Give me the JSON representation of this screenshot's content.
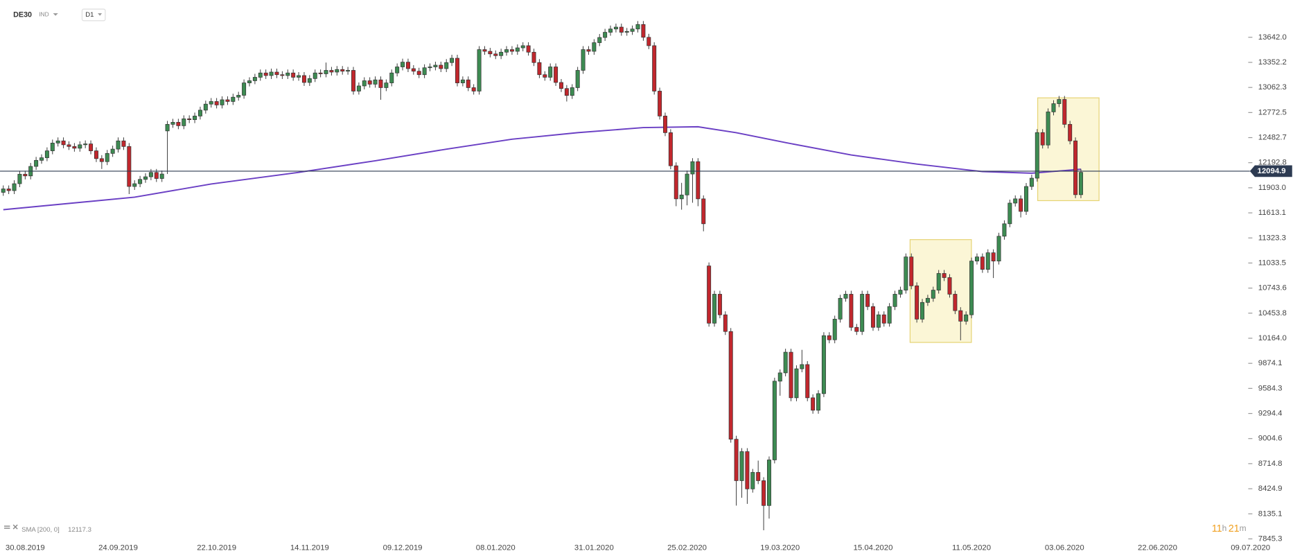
{
  "header": {
    "symbol": "DE30",
    "kind": "IND",
    "timeframe": "D1"
  },
  "chart_data": {
    "type": "candlestick",
    "up_color": "#3d8b52",
    "down_color": "#c1272d",
    "open": [
      11850,
      11890,
      11870,
      11950,
      12060,
      12040,
      12150,
      12220,
      12250,
      12330,
      12420,
      12445,
      12400,
      12380,
      12360,
      12400,
      12410,
      12330,
      12240,
      12205,
      12300,
      12350,
      12445,
      12380,
      11918,
      11950,
      12000,
      12030,
      12080,
      12010,
      12560,
      12636,
      12660,
      12620,
      12700,
      12690,
      12732,
      12800,
      12870,
      12900,
      12860,
      12920,
      12900,
      12950,
      12972,
      13115,
      13140,
      13180,
      13230,
      13200,
      13240,
      13210,
      13200,
      13230,
      13180,
      13200,
      13120,
      13165,
      13230,
      13220,
      13260,
      13240,
      13270,
      13250,
      13260,
      13020,
      13080,
      13140,
      13100,
      13150,
      13060,
      13115,
      13230,
      13300,
      13355,
      13280,
      13250,
      13210,
      13290,
      13300,
      13320,
      13280,
      13350,
      13400,
      13115,
      13150,
      13060,
      13020,
      13500,
      13480,
      13450,
      13430,
      13470,
      13500,
      13480,
      13520,
      13545,
      13470,
      13350,
      13210,
      13180,
      13300,
      13120,
      13050,
      12970,
      13060,
      13260,
      13500,
      13480,
      13580,
      13640,
      13700,
      13738,
      13760,
      13700,
      13710,
      13738,
      13790,
      13642,
      13545,
      13020,
      12732,
      12540,
      12157,
      11775,
      11820,
      12062,
      12205,
      11775,
      11000,
      10338,
      10673,
      10435,
      10242,
      8997,
      8518,
      8854,
      8423,
      8614,
      8518,
      8231,
      8758,
      9668,
      9764,
      10003,
      9476,
      9811,
      9860,
      9476,
      9332,
      9524,
      10194,
      10146,
      10385,
      10626,
      10673,
      10290,
      10242,
      10673,
      10530,
      10290,
      10435,
      10338,
      10530,
      10673,
      10720,
      11104,
      10770,
      10385,
      10578,
      10626,
      10720,
      10913,
      10865,
      10673,
      10483,
      10361,
      10435,
      11056,
      11104,
      10960,
      11152,
      11056,
      11343,
      11487,
      11726,
      11775,
      11630,
      11918,
      12014,
      12541,
      12397,
      12780,
      12875,
      12924,
      12636,
      12445,
      11823
    ],
    "high": [
      11930,
      11930,
      11990,
      12100,
      12100,
      12190,
      12260,
      12290,
      12370,
      12460,
      12485,
      12485,
      12440,
      12420,
      12440,
      12450,
      12450,
      12370,
      12280,
      12340,
      12390,
      12485,
      12485,
      12420,
      11990,
      12040,
      12070,
      12120,
      12120,
      12102,
      12676,
      12700,
      12700,
      12740,
      12740,
      12772,
      12840,
      12910,
      12940,
      12940,
      12960,
      12960,
      12990,
      13012,
      13155,
      13180,
      13220,
      13270,
      13270,
      13280,
      13280,
      13250,
      13270,
      13270,
      13240,
      13240,
      13205,
      13270,
      13270,
      13350,
      13300,
      13310,
      13310,
      13300,
      13300,
      13120,
      13180,
      13180,
      13190,
      13190,
      13155,
      13270,
      13340,
      13395,
      13395,
      13320,
      13290,
      13330,
      13340,
      13360,
      13360,
      13390,
      13440,
      13440,
      13190,
      13190,
      13100,
      13540,
      13540,
      13520,
      13490,
      13510,
      13540,
      13540,
      13560,
      13585,
      13585,
      13510,
      13390,
      13250,
      13340,
      13340,
      13160,
      13090,
      13100,
      13300,
      13540,
      13540,
      13620,
      13680,
      13740,
      13778,
      13800,
      13800,
      13750,
      13778,
      13830,
      13830,
      13682,
      13585,
      13060,
      12772,
      12580,
      12197,
      11960,
      12102,
      12245,
      12245,
      11815,
      11040,
      10713,
      10713,
      10475,
      10282,
      9037,
      8894,
      8894,
      8654,
      8750,
      8558,
      8798,
      9708,
      9804,
      10043,
      10043,
      9851,
      10030,
      9900,
      9516,
      9564,
      10234,
      10234,
      10425,
      10666,
      10713,
      10713,
      10330,
      10713,
      10713,
      10570,
      10475,
      10475,
      10570,
      10713,
      10760,
      11144,
      11144,
      10810,
      10618,
      10666,
      10760,
      10953,
      10953,
      10905,
      10713,
      10523,
      10475,
      11096,
      11144,
      11144,
      11192,
      11192,
      11383,
      11527,
      11766,
      11815,
      11815,
      11958,
      12054,
      12581,
      12581,
      12820,
      12915,
      12964,
      12964,
      12676,
      12485,
      12121
    ],
    "low": [
      11810,
      11830,
      11830,
      11910,
      12000,
      12000,
      12110,
      12180,
      12210,
      12290,
      12380,
      12360,
      12340,
      12320,
      12320,
      12360,
      12290,
      12200,
      12120,
      12165,
      12260,
      12310,
      12340,
      11830,
      11878,
      11910,
      11960,
      11990,
      11970,
      11970,
      12062,
      12596,
      12580,
      12580,
      12650,
      12650,
      12692,
      12760,
      12830,
      12820,
      12820,
      12860,
      12860,
      12910,
      12932,
      13075,
      13100,
      13140,
      13160,
      13160,
      13170,
      13160,
      13160,
      13140,
      13140,
      13080,
      13080,
      13125,
      13180,
      13180,
      13200,
      13200,
      13210,
      13210,
      12980,
      12980,
      13040,
      13060,
      13060,
      12920,
      13020,
      13075,
      13190,
      13260,
      13240,
      13210,
      13170,
      13170,
      13250,
      13260,
      13240,
      13240,
      13310,
      13075,
      13075,
      13020,
      12980,
      12980,
      13440,
      13410,
      13390,
      13390,
      13430,
      13440,
      13440,
      13480,
      13430,
      13310,
      13170,
      13140,
      13140,
      13080,
      13010,
      12900,
      12930,
      13020,
      13220,
      13440,
      13440,
      13540,
      13600,
      13660,
      13698,
      13660,
      13660,
      13670,
      13698,
      13602,
      13505,
      12980,
      12692,
      12500,
      12117,
      11690,
      11650,
      11700,
      11730,
      11690,
      11400,
      10298,
      10298,
      10395,
      10202,
      8957,
      8230,
      8320,
      8250,
      8380,
      8478,
      7945,
      8080,
      8718,
      9500,
      9724,
      9436,
      9436,
      9771,
      9436,
      9292,
      9292,
      9484,
      10106,
      10106,
      10345,
      10586,
      10250,
      10202,
      10202,
      10490,
      10250,
      10250,
      10298,
      10298,
      10490,
      10633,
      10680,
      10730,
      10345,
      10345,
      10538,
      10586,
      10680,
      10825,
      10633,
      10443,
      10140,
      10321,
      10395,
      11016,
      10920,
      10920,
      10860,
      11016,
      11303,
      11447,
      11686,
      11560,
      11590,
      11878,
      11974,
      12357,
      12357,
      12740,
      12835,
      12596,
      12405,
      11783,
      11783
    ],
    "close": [
      11890,
      11870,
      11950,
      12060,
      12040,
      12150,
      12220,
      12250,
      12330,
      12420,
      12445,
      12400,
      12380,
      12360,
      12400,
      12410,
      12330,
      12240,
      12205,
      12300,
      12350,
      12445,
      12380,
      11918,
      11950,
      12000,
      12030,
      12080,
      12010,
      12062,
      12636,
      12660,
      12620,
      12700,
      12690,
      12732,
      12800,
      12870,
      12900,
      12860,
      12920,
      12900,
      12950,
      12972,
      13115,
      13140,
      13180,
      13230,
      13200,
      13240,
      13210,
      13200,
      13230,
      13180,
      13200,
      13120,
      13165,
      13230,
      13220,
      13260,
      13240,
      13270,
      13250,
      13260,
      13020,
      13080,
      13140,
      13100,
      13150,
      13060,
      13115,
      13230,
      13300,
      13355,
      13280,
      13250,
      13210,
      13290,
      13300,
      13320,
      13280,
      13350,
      13400,
      13115,
      13150,
      13060,
      13020,
      13500,
      13480,
      13450,
      13430,
      13470,
      13500,
      13480,
      13520,
      13545,
      13470,
      13350,
      13210,
      13180,
      13300,
      13120,
      13050,
      12970,
      13060,
      13260,
      13500,
      13480,
      13580,
      13640,
      13700,
      13738,
      13760,
      13700,
      13710,
      13738,
      13790,
      13642,
      13545,
      13020,
      12732,
      12540,
      12157,
      11775,
      11820,
      12062,
      12205,
      11775,
      11487,
      10338,
      10673,
      10435,
      10242,
      8997,
      8518,
      8854,
      8423,
      8614,
      8518,
      8231,
      8758,
      9668,
      9764,
      10003,
      9476,
      9811,
      9860,
      9476,
      9332,
      9524,
      10194,
      10146,
      10385,
      10626,
      10673,
      10290,
      10242,
      10673,
      10530,
      10290,
      10435,
      10338,
      10530,
      10673,
      10720,
      11104,
      10770,
      10385,
      10578,
      10626,
      10720,
      10913,
      10865,
      10673,
      10483,
      10361,
      10435,
      11056,
      11104,
      10960,
      11152,
      11056,
      11343,
      11487,
      11726,
      11775,
      11630,
      11918,
      12014,
      12541,
      12397,
      12780,
      12875,
      12924,
      12636,
      12445,
      11823,
      12081
    ],
    "xlim": [
      -0.6,
      229.1
    ],
    "xticks": [
      {
        "value": 4,
        "label": "30.08.2019"
      },
      {
        "value": 21,
        "label": "24.09.2019"
      },
      {
        "value": 39,
        "label": "22.10.2019"
      },
      {
        "value": 56,
        "label": "14.11.2019"
      },
      {
        "value": 73,
        "label": "09.12.2019"
      },
      {
        "value": 90,
        "label": "08.01.2020"
      },
      {
        "value": 108,
        "label": "31.01.2020"
      },
      {
        "value": 125,
        "label": "25.02.2020"
      },
      {
        "value": 142,
        "label": "19.03.2020"
      },
      {
        "value": 159,
        "label": "15.04.2020"
      },
      {
        "value": 177,
        "label": "11.05.2020"
      },
      {
        "value": 194,
        "label": "03.06.2020"
      },
      {
        "value": 211,
        "label": "22.06.2020"
      },
      {
        "value": 228,
        "label": "09.07.2020"
      }
    ],
    "ylim": [
      7749,
      14073
    ],
    "yticks": [
      {
        "value": 13642,
        "label": "13642.0"
      },
      13352.2,
      13062.3,
      12772.5,
      12482.7,
      12192.8,
      {
        "value": 11903,
        "label": "11903.0"
      },
      11613.1,
      11323.3,
      11033.5,
      10743.6,
      10453.8,
      {
        "value": 10164,
        "label": "10164.0"
      },
      9874.1,
      9584.3,
      9294.4,
      9004.6,
      8714.8,
      8424.9,
      8135.1,
      7845.3
    ],
    "current_price": 12094.9,
    "price_line_color": "#2d3b52",
    "sma": {
      "label": "SMA [200, 0]",
      "value": 12117.3,
      "color": "#6a3fc4",
      "x": [
        0,
        24,
        38,
        54,
        68,
        81,
        93,
        105,
        117,
        127,
        134,
        143,
        155,
        167,
        179,
        188,
        197
      ],
      "values": [
        11650,
        11794,
        11947,
        12081,
        12215,
        12349,
        12464,
        12540,
        12598,
        12608,
        12540,
        12425,
        12282,
        12177,
        12090,
        12071,
        12117
      ]
    },
    "countdown": [
      "11",
      "h",
      "21",
      "m"
    ]
  }
}
